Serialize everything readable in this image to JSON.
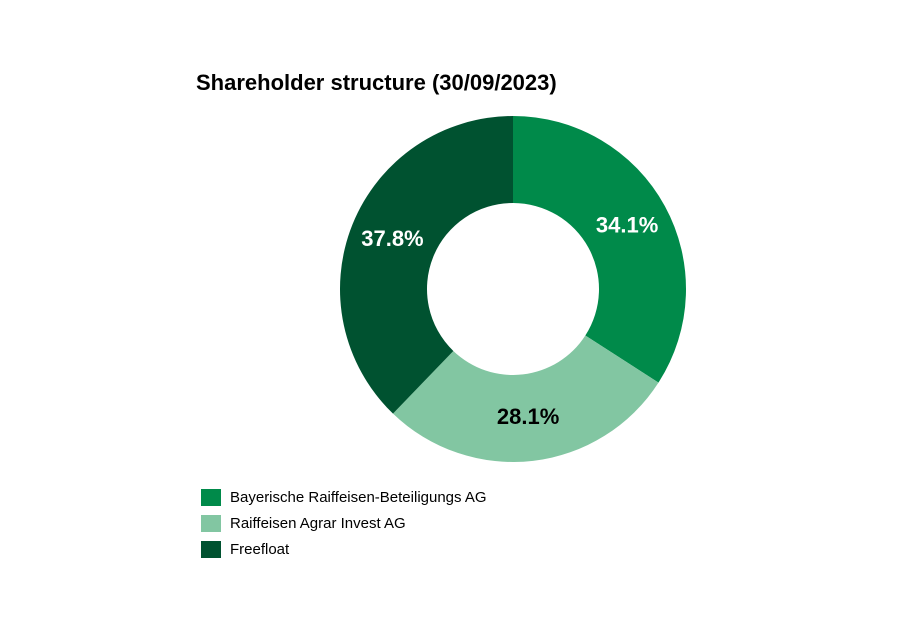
{
  "chart_data": {
    "type": "pie",
    "title": "Shareholder structure (30/09/2023)",
    "categories": [
      "Bayerische Raiffeisen-Beteiligungs AG",
      "Raiffeisen Agrar Invest AG",
      "Freefloat"
    ],
    "values": [
      34.1,
      28.1,
      37.8
    ],
    "value_labels": [
      "34.1%",
      "28.1%",
      "37.8%"
    ],
    "colors": [
      "#008a4a",
      "#82c6a2",
      "#005230"
    ],
    "label_colors": [
      "#ffffff",
      "#000000",
      "#ffffff"
    ],
    "donut": true,
    "legend_position": "bottom-left"
  }
}
